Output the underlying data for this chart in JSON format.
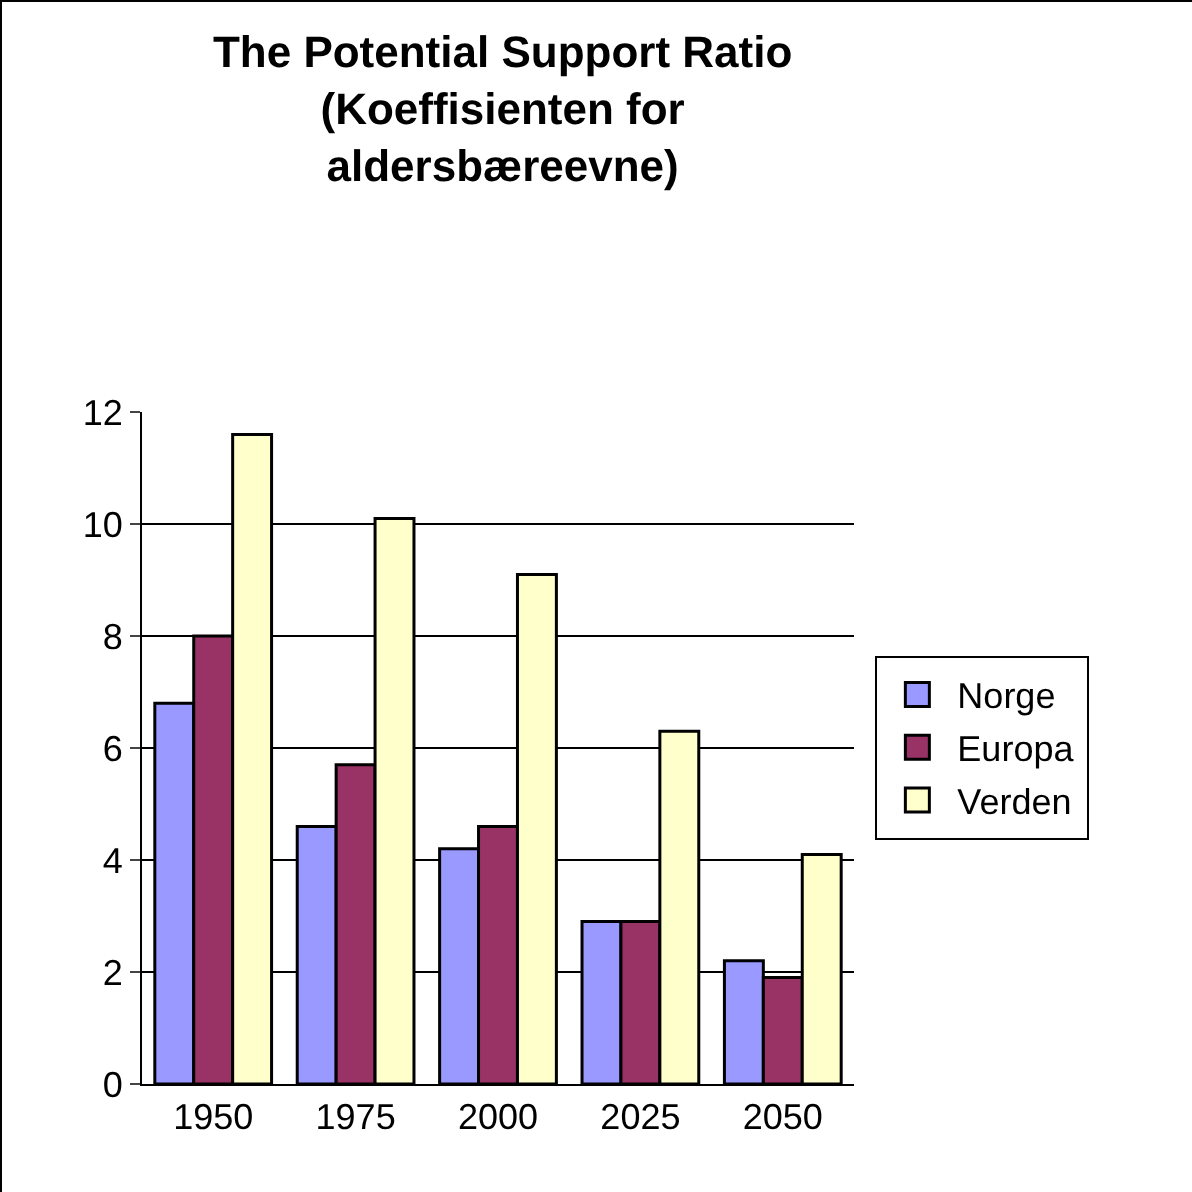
{
  "chart_data": {
    "type": "bar",
    "title": "The Potential Support Ratio (Koeffisienten for aldersbæreevne)",
    "categories": [
      "1950",
      "1975",
      "2000",
      "2025",
      "2050"
    ],
    "series": [
      {
        "name": "Norge",
        "color": "#9999ff",
        "values": [
          6.8,
          4.6,
          4.2,
          2.9,
          2.2
        ]
      },
      {
        "name": "Europa",
        "color": "#993366",
        "values": [
          8.0,
          5.7,
          4.6,
          2.9,
          1.9
        ]
      },
      {
        "name": "Verden",
        "color": "#ffffcc",
        "values": [
          11.6,
          10.1,
          9.1,
          6.3,
          4.1
        ]
      }
    ],
    "ylim": [
      0,
      12
    ],
    "yticks": [
      0,
      2,
      4,
      6,
      8,
      10,
      12
    ],
    "grid": "y",
    "legend": "right"
  }
}
